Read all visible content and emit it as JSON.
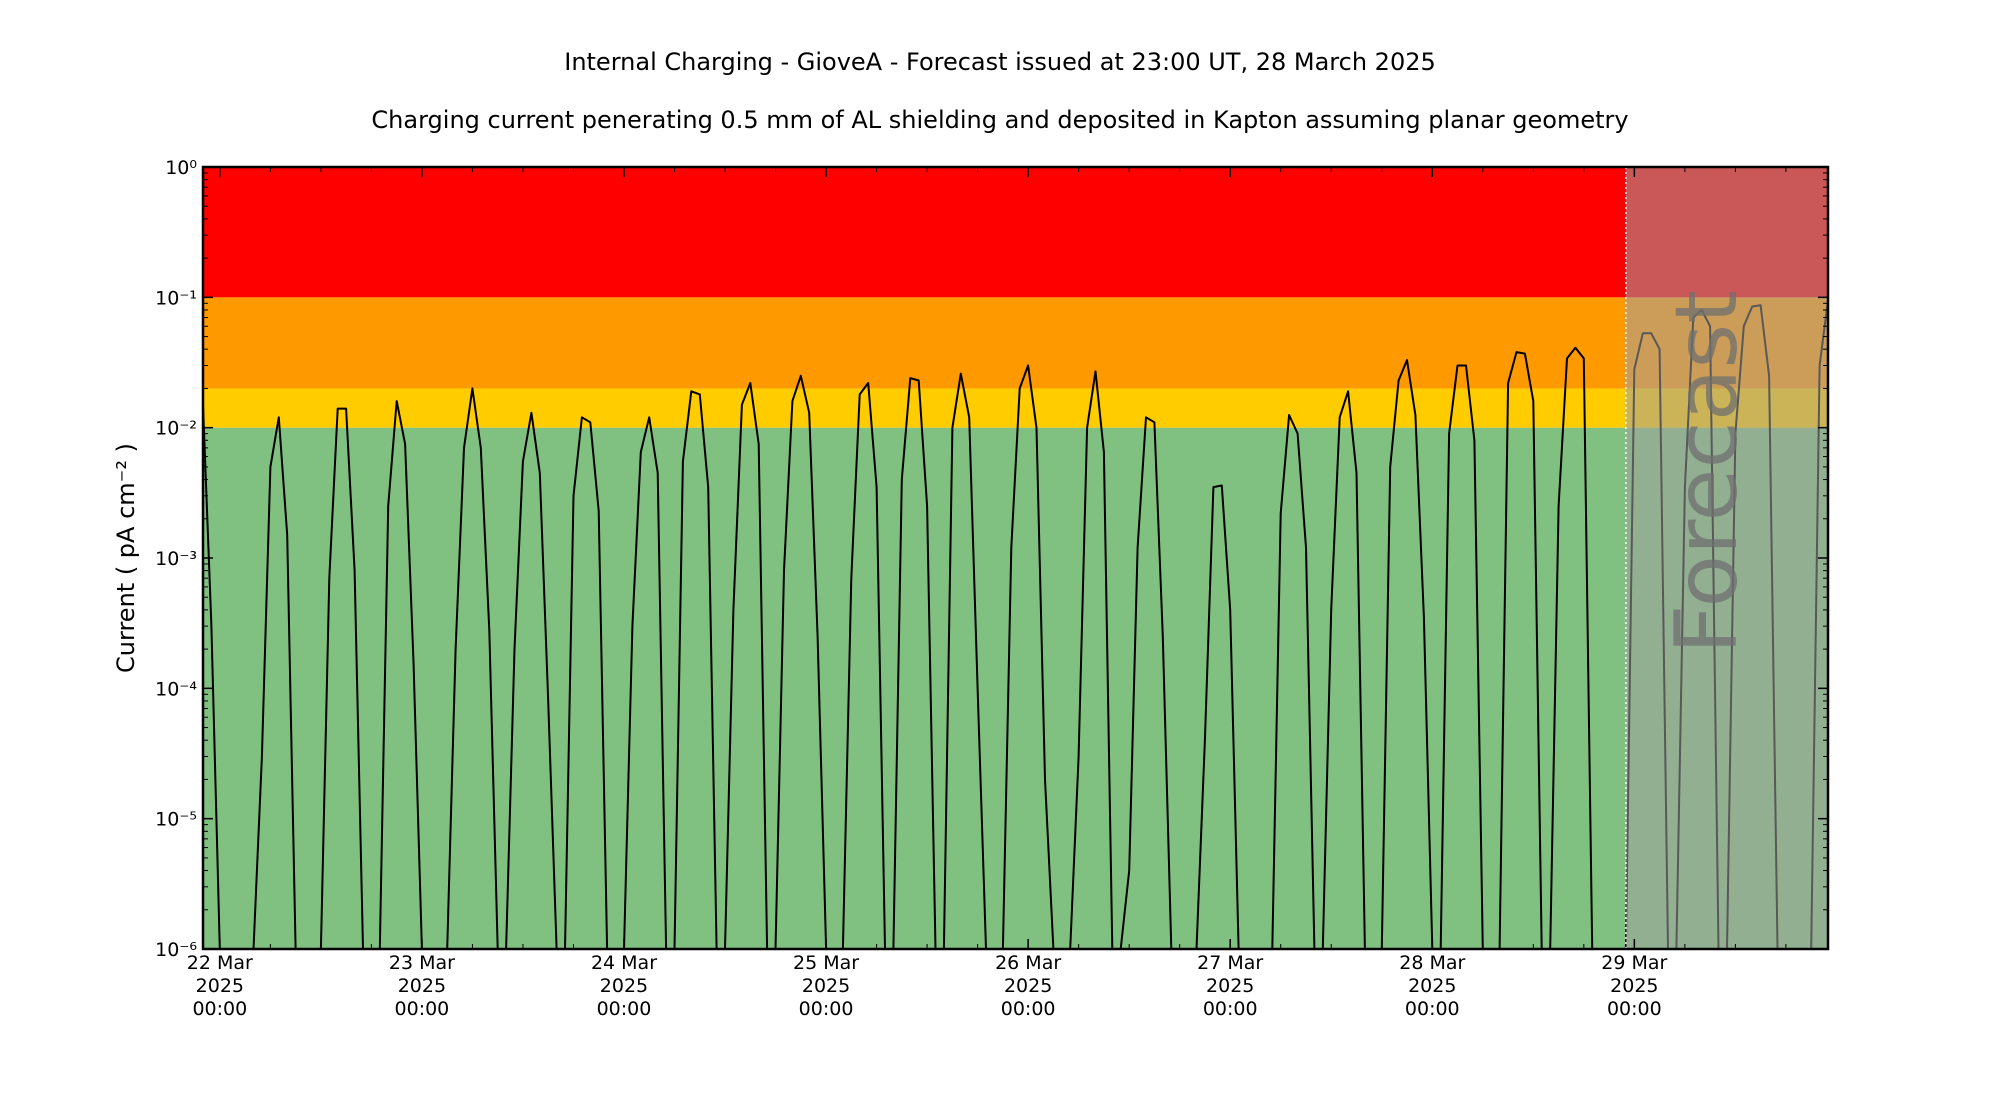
{
  "chart_data": {
    "type": "line",
    "title": "Internal Charging - GioveA - Forecast issued at 23:00 UT, 28 March 2025",
    "subtitle": "Charging current penerating 0.5 mm of AL shielding and deposited in Kapton assuming planar geometry",
    "ylabel": "Current ( pA cm⁻² )",
    "yscale": "log",
    "ylim": [
      1e-06,
      1
    ],
    "yticks": [
      {
        "value": 1e-06,
        "label": "10⁻⁶"
      },
      {
        "value": 1e-05,
        "label": "10⁻⁵"
      },
      {
        "value": 0.0001,
        "label": "10⁻⁴"
      },
      {
        "value": 0.001,
        "label": "10⁻³"
      },
      {
        "value": 0.01,
        "label": "10⁻²"
      },
      {
        "value": 0.1,
        "label": "10⁻¹"
      },
      {
        "value": 1,
        "label": "10⁰"
      }
    ],
    "xlim": [
      "2025-03-21 22:00",
      "2025-03-29 23:00"
    ],
    "xticks": [
      {
        "value": "2025-03-22 00:00",
        "lines": [
          "22 Mar",
          "2025",
          "00:00"
        ]
      },
      {
        "value": "2025-03-23 00:00",
        "lines": [
          "23 Mar",
          "2025",
          "00:00"
        ]
      },
      {
        "value": "2025-03-24 00:00",
        "lines": [
          "24 Mar",
          "2025",
          "00:00"
        ]
      },
      {
        "value": "2025-03-25 00:00",
        "lines": [
          "25 Mar",
          "2025",
          "00:00"
        ]
      },
      {
        "value": "2025-03-26 00:00",
        "lines": [
          "26 Mar",
          "2025",
          "00:00"
        ]
      },
      {
        "value": "2025-03-27 00:00",
        "lines": [
          "27 Mar",
          "2025",
          "00:00"
        ]
      },
      {
        "value": "2025-03-28 00:00",
        "lines": [
          "28 Mar",
          "2025",
          "00:00"
        ]
      },
      {
        "value": "2025-03-29 00:00",
        "lines": [
          "29 Mar",
          "2025",
          "00:00"
        ]
      }
    ],
    "bands": [
      {
        "from": 1e-06,
        "to": 0.01,
        "color": "#80c080"
      },
      {
        "from": 0.01,
        "to": 0.02,
        "color": "#ffcc00"
      },
      {
        "from": 0.02,
        "to": 0.1,
        "color": "#ff9900"
      },
      {
        "from": 0.1,
        "to": 1,
        "color": "#ff0000"
      }
    ],
    "forecast_start": "2025-03-28 23:00",
    "forecast_label": "Forecast",
    "forecast_overlay_color": "#a0a0a0",
    "line_color": "#000000",
    "series": [
      {
        "points": [
          [
            "2025-03-21 22:00",
            0.015
          ],
          [
            "2025-03-21 23:00",
            0.0003
          ],
          [
            "2025-03-22 00:00",
            1e-06
          ],
          [
            "2025-03-22 04:00",
            1e-06
          ],
          [
            "2025-03-22 05:00",
            3e-05
          ],
          [
            "2025-03-22 06:00",
            0.005
          ],
          [
            "2025-03-22 07:00",
            0.012
          ],
          [
            "2025-03-22 08:00",
            0.0015
          ],
          [
            "2025-03-22 09:00",
            1e-06
          ],
          [
            "2025-03-22 12:00",
            1e-06
          ],
          [
            "2025-03-22 13:00",
            0.0007
          ],
          [
            "2025-03-22 14:00",
            0.014
          ],
          [
            "2025-03-22 15:00",
            0.014
          ],
          [
            "2025-03-22 16:00",
            0.0008
          ],
          [
            "2025-03-22 17:00",
            1e-06
          ],
          [
            "2025-03-22 19:00",
            1e-06
          ],
          [
            "2025-03-22 20:00",
            0.0025
          ],
          [
            "2025-03-22 21:00",
            0.016
          ],
          [
            "2025-03-22 22:00",
            0.0075
          ],
          [
            "2025-03-22 23:00",
            0.00016
          ],
          [
            "2025-03-23 00:00",
            1e-06
          ],
          [
            "2025-03-23 03:00",
            1e-06
          ],
          [
            "2025-03-23 04:00",
            0.0002
          ],
          [
            "2025-03-23 05:00",
            0.007
          ],
          [
            "2025-03-23 06:00",
            0.02
          ],
          [
            "2025-03-23 07:00",
            0.007
          ],
          [
            "2025-03-23 08:00",
            0.00028
          ],
          [
            "2025-03-23 09:00",
            1e-06
          ],
          [
            "2025-03-23 10:00",
            1e-06
          ],
          [
            "2025-03-23 11:00",
            0.0002
          ],
          [
            "2025-03-23 12:00",
            0.0055
          ],
          [
            "2025-03-23 13:00",
            0.013
          ],
          [
            "2025-03-23 14:00",
            0.0045
          ],
          [
            "2025-03-23 15:00",
            8e-05
          ],
          [
            "2025-03-23 16:00",
            1e-06
          ],
          [
            "2025-03-23 17:00",
            1e-06
          ],
          [
            "2025-03-23 18:00",
            0.003
          ],
          [
            "2025-03-23 19:00",
            0.012
          ],
          [
            "2025-03-23 20:00",
            0.011
          ],
          [
            "2025-03-23 21:00",
            0.0023
          ],
          [
            "2025-03-23 22:00",
            1e-06
          ],
          [
            "2025-03-24 00:00",
            1e-06
          ],
          [
            "2025-03-24 01:00",
            0.0003
          ],
          [
            "2025-03-24 02:00",
            0.0065
          ],
          [
            "2025-03-24 03:00",
            0.012
          ],
          [
            "2025-03-24 04:00",
            0.0045
          ],
          [
            "2025-03-24 05:00",
            1e-06
          ],
          [
            "2025-03-24 06:00",
            1e-06
          ],
          [
            "2025-03-24 07:00",
            0.0055
          ],
          [
            "2025-03-24 08:00",
            0.019
          ],
          [
            "2025-03-24 09:00",
            0.018
          ],
          [
            "2025-03-24 10:00",
            0.0035
          ],
          [
            "2025-03-24 11:00",
            1e-06
          ],
          [
            "2025-03-24 12:00",
            1e-06
          ],
          [
            "2025-03-24 13:00",
            0.0004
          ],
          [
            "2025-03-24 14:00",
            0.015
          ],
          [
            "2025-03-24 15:00",
            0.022
          ],
          [
            "2025-03-24 16:00",
            0.0075
          ],
          [
            "2025-03-24 17:00",
            1e-06
          ],
          [
            "2025-03-24 18:00",
            1e-06
          ],
          [
            "2025-03-24 19:00",
            0.0008
          ],
          [
            "2025-03-24 20:00",
            0.016
          ],
          [
            "2025-03-24 21:00",
            0.025
          ],
          [
            "2025-03-24 22:00",
            0.013
          ],
          [
            "2025-03-24 23:00",
            0.00025
          ],
          [
            "2025-03-25 00:00",
            1e-06
          ],
          [
            "2025-03-25 02:00",
            1e-06
          ],
          [
            "2025-03-25 03:00",
            0.0007
          ],
          [
            "2025-03-25 04:00",
            0.018
          ],
          [
            "2025-03-25 05:00",
            0.022
          ],
          [
            "2025-03-25 06:00",
            0.0035
          ],
          [
            "2025-03-25 07:00",
            1e-06
          ],
          [
            "2025-03-25 08:00",
            1e-06
          ],
          [
            "2025-03-25 09:00",
            0.004
          ],
          [
            "2025-03-25 10:00",
            0.024
          ],
          [
            "2025-03-25 11:00",
            0.023
          ],
          [
            "2025-03-25 12:00",
            0.0025
          ],
          [
            "2025-03-25 13:00",
            1e-06
          ],
          [
            "2025-03-25 14:00",
            1e-06
          ],
          [
            "2025-03-25 15:00",
            0.01
          ],
          [
            "2025-03-25 16:00",
            0.026
          ],
          [
            "2025-03-25 17:00",
            0.012
          ],
          [
            "2025-03-25 18:00",
            0.0001
          ],
          [
            "2025-03-25 19:00",
            1e-06
          ],
          [
            "2025-03-25 21:00",
            1e-06
          ],
          [
            "2025-03-25 22:00",
            0.0012
          ],
          [
            "2025-03-25 23:00",
            0.02
          ],
          [
            "2025-03-26 00:00",
            0.03
          ],
          [
            "2025-03-26 01:00",
            0.01
          ],
          [
            "2025-03-26 02:00",
            2e-05
          ],
          [
            "2025-03-26 03:00",
            1e-06
          ],
          [
            "2025-03-26 05:00",
            1e-06
          ],
          [
            "2025-03-26 06:00",
            3e-05
          ],
          [
            "2025-03-26 07:00",
            0.01
          ],
          [
            "2025-03-26 08:00",
            0.027
          ],
          [
            "2025-03-26 09:00",
            0.0065
          ],
          [
            "2025-03-26 10:00",
            1e-06
          ],
          [
            "2025-03-26 11:00",
            1e-06
          ],
          [
            "2025-03-26 12:00",
            4e-06
          ],
          [
            "2025-03-26 13:00",
            0.0012
          ],
          [
            "2025-03-26 14:00",
            0.012
          ],
          [
            "2025-03-26 15:00",
            0.011
          ],
          [
            "2025-03-26 16:00",
            0.00025
          ],
          [
            "2025-03-26 17:00",
            1e-06
          ],
          [
            "2025-03-26 20:00",
            1e-06
          ],
          [
            "2025-03-26 21:00",
            4e-05
          ],
          [
            "2025-03-26 22:00",
            0.0035
          ],
          [
            "2025-03-26 23:00",
            0.0036
          ],
          [
            "2025-03-27 00:00",
            0.0004
          ],
          [
            "2025-03-27 01:00",
            1e-06
          ],
          [
            "2025-03-27 05:00",
            1e-06
          ],
          [
            "2025-03-27 06:00",
            0.0022
          ],
          [
            "2025-03-27 07:00",
            0.0125
          ],
          [
            "2025-03-27 08:00",
            0.009
          ],
          [
            "2025-03-27 09:00",
            0.0012
          ],
          [
            "2025-03-27 10:00",
            1e-06
          ],
          [
            "2025-03-27 11:00",
            1e-06
          ],
          [
            "2025-03-27 12:00",
            0.0004
          ],
          [
            "2025-03-27 13:00",
            0.012
          ],
          [
            "2025-03-27 14:00",
            0.019
          ],
          [
            "2025-03-27 15:00",
            0.0045
          ],
          [
            "2025-03-27 16:00",
            1e-06
          ],
          [
            "2025-03-27 18:00",
            1e-06
          ],
          [
            "2025-03-27 19:00",
            0.005
          ],
          [
            "2025-03-27 20:00",
            0.023
          ],
          [
            "2025-03-27 21:00",
            0.033
          ],
          [
            "2025-03-27 22:00",
            0.0125
          ],
          [
            "2025-03-27 23:00",
            0.00035
          ],
          [
            "2025-03-28 00:00",
            1e-06
          ],
          [
            "2025-03-28 01:00",
            1e-06
          ],
          [
            "2025-03-28 02:00",
            0.009
          ],
          [
            "2025-03-28 03:00",
            0.03
          ],
          [
            "2025-03-28 04:00",
            0.03
          ],
          [
            "2025-03-28 05:00",
            0.008
          ],
          [
            "2025-03-28 06:00",
            1e-06
          ],
          [
            "2025-03-28 08:00",
            1e-06
          ],
          [
            "2025-03-28 09:00",
            0.022
          ],
          [
            "2025-03-28 10:00",
            0.038
          ],
          [
            "2025-03-28 11:00",
            0.037
          ],
          [
            "2025-03-28 12:00",
            0.016
          ],
          [
            "2025-03-28 13:00",
            1e-06
          ],
          [
            "2025-03-28 14:00",
            1e-06
          ],
          [
            "2025-03-28 15:00",
            0.0025
          ],
          [
            "2025-03-28 16:00",
            0.034
          ],
          [
            "2025-03-28 17:00",
            0.041
          ],
          [
            "2025-03-28 18:00",
            0.034
          ],
          [
            "2025-03-28 19:00",
            1e-06
          ],
          [
            "2025-03-28 23:00",
            1e-06
          ],
          [
            "2025-03-29 00:00",
            0.028
          ],
          [
            "2025-03-29 01:00",
            0.053
          ],
          [
            "2025-03-29 02:00",
            0.053
          ],
          [
            "2025-03-29 03:00",
            0.04
          ],
          [
            "2025-03-29 04:00",
            1e-06
          ],
          [
            "2025-03-29 05:00",
            1e-06
          ],
          [
            "2025-03-29 06:00",
            0.0035
          ],
          [
            "2025-03-29 07:00",
            0.07
          ],
          [
            "2025-03-29 08:00",
            0.08
          ],
          [
            "2025-03-29 09:00",
            0.06
          ],
          [
            "2025-03-29 10:00",
            1e-06
          ],
          [
            "2025-03-29 11:00",
            1e-06
          ],
          [
            "2025-03-29 12:00",
            0.009
          ],
          [
            "2025-03-29 13:00",
            0.06
          ],
          [
            "2025-03-29 14:00",
            0.085
          ],
          [
            "2025-03-29 15:00",
            0.087
          ],
          [
            "2025-03-29 16:00",
            0.025
          ],
          [
            "2025-03-29 17:00",
            1e-06
          ],
          [
            "2025-03-29 21:00",
            1e-06
          ],
          [
            "2025-03-29 22:00",
            0.03
          ],
          [
            "2025-03-29 23:00",
            0.095
          ]
        ]
      }
    ]
  }
}
